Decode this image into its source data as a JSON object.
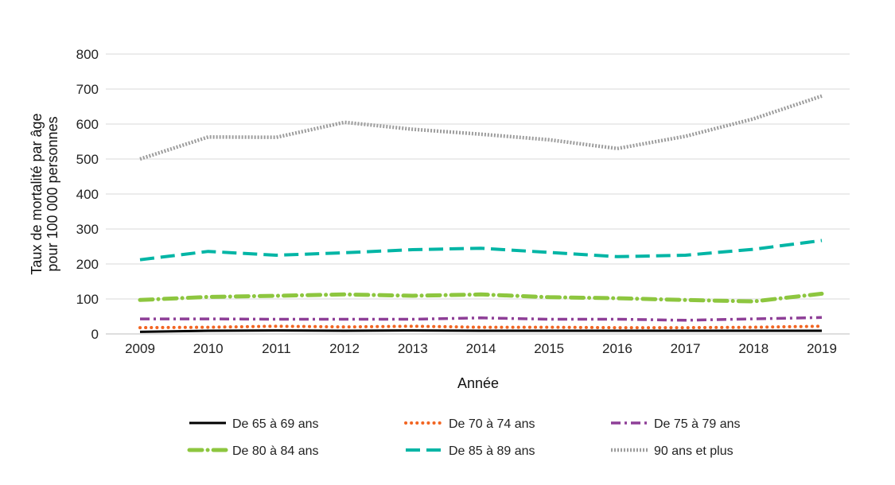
{
  "chart_data": {
    "type": "line",
    "title": "",
    "xlabel": "Année",
    "ylabel_lines": [
      "Taux de mortalité par âge",
      "pour 100 000 personnes"
    ],
    "x": [
      2009,
      2010,
      2011,
      2012,
      2013,
      2014,
      2015,
      2016,
      2017,
      2018,
      2019
    ],
    "x_tick_labels": [
      "2009",
      "2010",
      "2011",
      "2012",
      "2013",
      "2014",
      "2015",
      "2016",
      "2017",
      "2018",
      "2019"
    ],
    "ylim": [
      0,
      800
    ],
    "y_ticks": [
      0,
      100,
      200,
      300,
      400,
      500,
      600,
      700,
      800
    ],
    "y_tick_labels": [
      "0",
      "100",
      "200",
      "300",
      "400",
      "500",
      "600",
      "700",
      "800"
    ],
    "grid": true,
    "legend_position": "bottom",
    "series": [
      {
        "name": "De 65 à 69 ans",
        "color": "#000000",
        "style": "solid",
        "values": [
          6,
          9,
          10,
          9,
          10,
          9,
          9,
          9,
          9,
          9,
          9
        ]
      },
      {
        "name": "De 70 à 74 ans",
        "color": "#f26522",
        "style": "dotted",
        "values": [
          18,
          19,
          22,
          20,
          22,
          19,
          19,
          18,
          18,
          19,
          22
        ]
      },
      {
        "name": "De 75 à 79 ans",
        "color": "#8e3f97",
        "style": "dashdot",
        "values": [
          43,
          43,
          42,
          42,
          42,
          46,
          42,
          42,
          39,
          43,
          47
        ]
      },
      {
        "name": "De 80 à 84 ans",
        "color": "#8dc63f",
        "style": "dashdot-thick",
        "values": [
          97,
          106,
          109,
          113,
          109,
          113,
          105,
          102,
          97,
          93,
          115
        ]
      },
      {
        "name": "De 85 à 89 ans",
        "color": "#00b5a5",
        "style": "dashed",
        "values": [
          212,
          236,
          225,
          232,
          241,
          245,
          233,
          221,
          225,
          242,
          267
        ]
      },
      {
        "name": "90 ans et plus",
        "color": "#9d9d9d",
        "style": "dotted-thick",
        "values": [
          500,
          563,
          562,
          605,
          585,
          571,
          555,
          530,
          565,
          615,
          680
        ]
      }
    ]
  }
}
